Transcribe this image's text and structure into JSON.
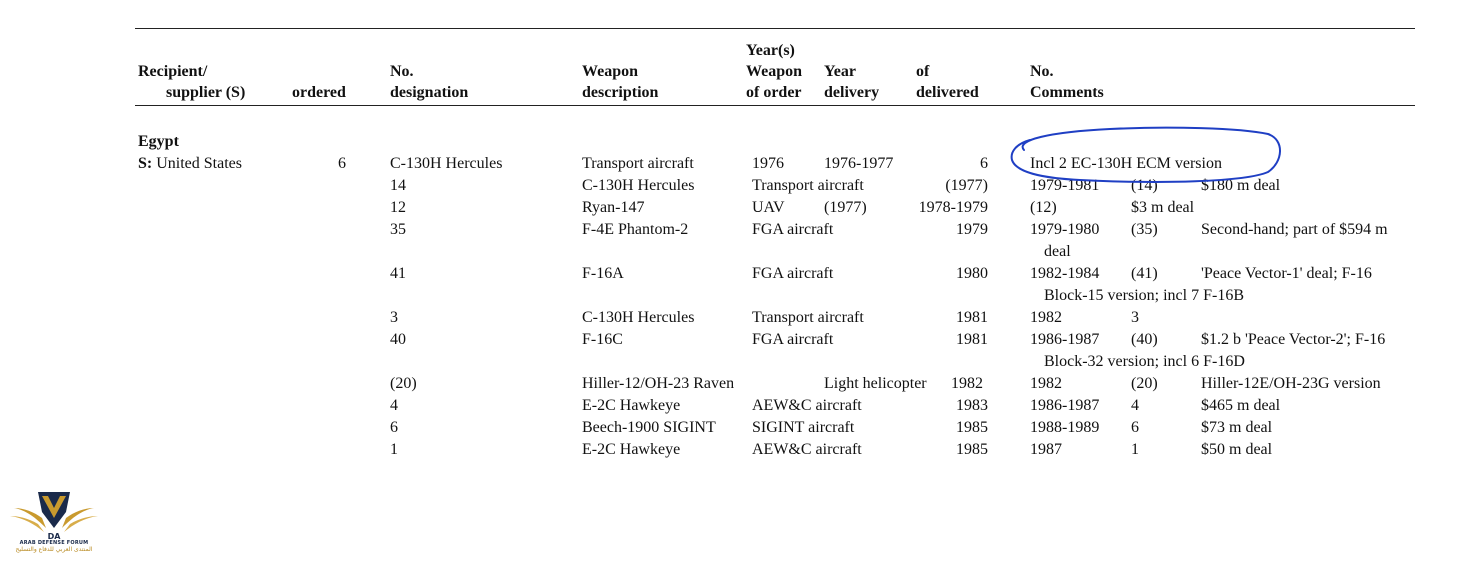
{
  "header": {
    "recipient_line1": "Recipient/",
    "recipient_line2": "supplier (S)",
    "ordered": "ordered",
    "no_line1": "No.",
    "no_line2": "designation",
    "weapon_line1": "Weapon",
    "weapon_line2": "description",
    "years_line1": "Year(s)",
    "years_line2": "Weapon",
    "years_line3": "of order",
    "year_line1": "Year",
    "year_line2": "delivery",
    "of_line1": "of",
    "of_line2": "delivered",
    "comments_line1": "No.",
    "comments_line2": "Comments"
  },
  "section": {
    "country": "Egypt",
    "supplier_prefix": "S:",
    "supplier_name": "United States",
    "first_row": {
      "ordered": "6",
      "designation": "C-130H Hercules",
      "description": "Transport aircraft",
      "order_year": "1976",
      "delivery": "1976-1977",
      "delivered": "6",
      "comment": "Incl 2 EC-130H ECM version"
    }
  },
  "rows": [
    {
      "c1": "14",
      "c2": "C-130H Hercules",
      "c3": "Transport aircraft",
      "c4": "(1977)",
      "c5": "1979-1981",
      "c6": "(14)",
      "c7": "$180 m deal",
      "cont": ""
    },
    {
      "c1": "12",
      "c2": "Ryan-147",
      "c3": "UAV",
      "c3b": "(1977)",
      "c4": "1978-1979",
      "c5": "(12)",
      "c6": "",
      "c7": "$3 m deal",
      "cont": ""
    },
    {
      "c1": "35",
      "c2": "F-4E Phantom-2",
      "c3": "FGA aircraft",
      "c4": "1979",
      "c5": "1979-1980",
      "c6": "(35)",
      "c7": "Second-hand; part of $594 m",
      "cont": "deal"
    },
    {
      "c1": "41",
      "c2": "F-16A",
      "c3": "FGA aircraft",
      "c4": "1980",
      "c5": "1982-1984",
      "c6": "(41)",
      "c7": "'Peace Vector-1' deal; F-16",
      "cont": "Block-15 version; incl 7 F-16B"
    },
    {
      "c1": "3",
      "c2": "C-130H Hercules",
      "c3": "Transport aircraft",
      "c4": "1981",
      "c5": "1982",
      "c6": "3",
      "c7": "",
      "cont": ""
    },
    {
      "c1": "40",
      "c2": "F-16C",
      "c3": "FGA aircraft",
      "c4": "1981",
      "c5": "1986-1987",
      "c6": "(40)",
      "c7": "$1.2 b 'Peace Vector-2'; F-16",
      "cont": "Block-32 version; incl 6 F-16D"
    },
    {
      "c1": "(20)",
      "c2": "Hiller-12/OH-23 Raven",
      "c3": "",
      "c3b": "Light helicopter",
      "c4": "1982",
      "c5": "1982",
      "c6": "(20)",
      "c7": "Hiller-12E/OH-23G version",
      "cont": ""
    },
    {
      "c1": "4",
      "c2": "E-2C Hawkeye",
      "c3": "AEW&C aircraft",
      "c4": "1983",
      "c5": "1986-1987",
      "c6": "4",
      "c7": "$465 m deal",
      "cont": ""
    },
    {
      "c1": "6",
      "c2": "Beech-1900 SIGINT",
      "c3": "SIGINT aircraft",
      "c4": "1985",
      "c5": "1988-1989",
      "c6": "6",
      "c7": "$73 m deal",
      "cont": ""
    },
    {
      "c1": "1",
      "c2": "E-2C Hawkeye",
      "c3": "AEW&C aircraft",
      "c4": "1985",
      "c5": "1987",
      "c6": "1",
      "c7": "$50 m deal",
      "cont": ""
    }
  ],
  "logo": {
    "badge": "DA",
    "name_en": "ARAB DEFENSE FORUM",
    "name_ar": "المنتدى العربي للدفاع والتسليح"
  },
  "colors": {
    "annotation": "#1f3fc4",
    "logo_gold": "#c99a2e",
    "logo_navy": "#1a2a4a"
  }
}
